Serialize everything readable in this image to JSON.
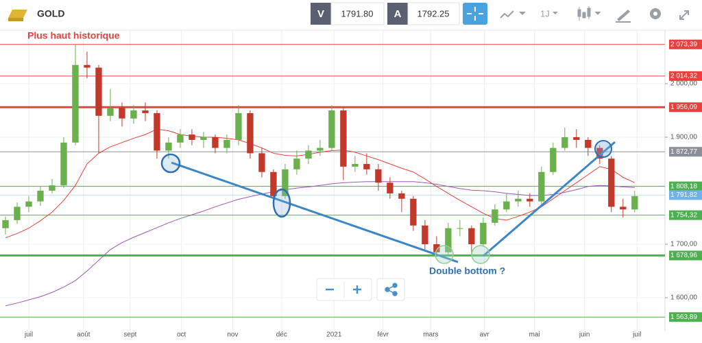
{
  "header": {
    "symbol": "GOLD",
    "bid_label": "V",
    "bid": "1791.80",
    "ask_label": "A",
    "ask": "1792.25",
    "timeframe": "1J"
  },
  "chart_data": {
    "type": "candlestick",
    "up_color": "#6ab04c",
    "down_color": "#c0392b",
    "open": [
      1730,
      1745,
      1770,
      1780,
      1800,
      1810,
      1890,
      2035,
      2030,
      1940,
      1955,
      1935,
      1950,
      1945,
      1875,
      1890,
      1905,
      1895,
      1900,
      1880,
      1895,
      1945,
      1870,
      1835,
      1790,
      1840,
      1860,
      1875,
      1880,
      1950,
      1845,
      1850,
      1840,
      1815,
      1795,
      1785,
      1735,
      1700,
      1685,
      1730,
      1730,
      1700,
      1740,
      1765,
      1780,
      1785,
      1780,
      1835,
      1880,
      1900,
      1895,
      1880,
      1860,
      1770,
      1765
    ],
    "high": [
      1752,
      1778,
      1790,
      1808,
      1822,
      1900,
      2073,
      2060,
      2035,
      1990,
      1965,
      1960,
      1965,
      1950,
      1900,
      1915,
      1915,
      1910,
      1905,
      1905,
      1960,
      1950,
      1880,
      1840,
      1850,
      1875,
      1885,
      1895,
      1960,
      1955,
      1865,
      1870,
      1850,
      1825,
      1800,
      1790,
      1745,
      1715,
      1740,
      1745,
      1735,
      1750,
      1775,
      1795,
      1800,
      1795,
      1845,
      1890,
      1918,
      1915,
      1900,
      1885,
      1865,
      1785,
      1800
    ],
    "low": [
      1718,
      1738,
      1760,
      1772,
      1795,
      1805,
      1885,
      2010,
      1870,
      1930,
      1920,
      1925,
      1930,
      1860,
      1860,
      1880,
      1885,
      1880,
      1870,
      1870,
      1885,
      1860,
      1825,
      1770,
      1785,
      1830,
      1850,
      1865,
      1875,
      1820,
      1835,
      1830,
      1800,
      1785,
      1760,
      1725,
      1690,
      1677,
      1680,
      1715,
      1680,
      1695,
      1735,
      1760,
      1770,
      1770,
      1775,
      1830,
      1875,
      1880,
      1865,
      1850,
      1760,
      1750,
      1760
    ],
    "close": [
      1745,
      1770,
      1780,
      1800,
      1810,
      1890,
      2035,
      2030,
      1940,
      1955,
      1935,
      1950,
      1945,
      1875,
      1890,
      1905,
      1895,
      1900,
      1880,
      1895,
      1945,
      1870,
      1835,
      1790,
      1840,
      1860,
      1875,
      1880,
      1950,
      1845,
      1850,
      1840,
      1815,
      1795,
      1785,
      1735,
      1700,
      1685,
      1730,
      1730,
      1700,
      1740,
      1765,
      1780,
      1785,
      1780,
      1835,
      1880,
      1900,
      1895,
      1880,
      1860,
      1770,
      1765,
      1790
    ],
    "series": [
      {
        "color": "#e8413d",
        "values": [
          1712,
          1720,
          1730,
          1744,
          1760,
          1782,
          1810,
          1850,
          1870,
          1882,
          1890,
          1898,
          1905,
          1915,
          1912,
          1905,
          1902,
          1900,
          1900,
          1898,
          1895,
          1888,
          1880,
          1870,
          1866,
          1865,
          1868,
          1872,
          1875,
          1876,
          1872,
          1865,
          1858,
          1850,
          1842,
          1835,
          1822,
          1808,
          1795,
          1782,
          1770,
          1758,
          1748,
          1745,
          1752,
          1760,
          1770,
          1785,
          1800,
          1815,
          1830,
          1845,
          1840,
          1825,
          1815
        ]
      },
      {
        "color": "#9b59b6",
        "values": [
          1585,
          1590,
          1596,
          1602,
          1610,
          1620,
          1632,
          1650,
          1670,
          1690,
          1703,
          1713,
          1722,
          1731,
          1740,
          1748,
          1755,
          1762,
          1770,
          1777,
          1784,
          1789,
          1794,
          1798,
          1802,
          1805,
          1807,
          1810,
          1813,
          1815,
          1816,
          1817,
          1817,
          1817,
          1817,
          1817,
          1815,
          1812,
          1808,
          1804,
          1801,
          1800,
          1798,
          1795,
          1793,
          1791,
          1791,
          1793,
          1797,
          1802,
          1808,
          1810,
          1809,
          1807,
          1806
        ]
      }
    ],
    "xlim": [
      -0.47,
      56.6
    ],
    "xticks": [
      {
        "value": 2.0,
        "label": "juil"
      },
      {
        "value": 6.7,
        "label": "août"
      },
      {
        "value": 10.7,
        "label": "sept"
      },
      {
        "value": 15.1,
        "label": "oct"
      },
      {
        "value": 19.5,
        "label": "nov"
      },
      {
        "value": 23.7,
        "label": "déc"
      },
      {
        "value": 28.2,
        "label": "2021"
      },
      {
        "value": 32.4,
        "label": "févr"
      },
      {
        "value": 36.5,
        "label": "mars"
      },
      {
        "value": 41.1,
        "label": "avr"
      },
      {
        "value": 45.4,
        "label": "mai"
      },
      {
        "value": 49.7,
        "label": "juin"
      },
      {
        "value": 54.2,
        "label": "juil"
      }
    ],
    "ylim": [
      1538.5,
      2100
    ],
    "yticks": [
      {
        "value": 1600,
        "label": "1 600,00"
      },
      {
        "value": 1700,
        "label": "1 700,00"
      },
      {
        "value": 1900,
        "label": "1 900,00"
      },
      {
        "value": 2000,
        "label": "2 000,00"
      }
    ],
    "levels": [
      {
        "value": 2073.39,
        "label": "2 073,39",
        "color": "#e8413d"
      },
      {
        "value": 2014.32,
        "label": "2 014,32",
        "color": "#e8413d"
      },
      {
        "value": 1956.09,
        "label": "1 956,09",
        "color": "#e8413d"
      },
      {
        "value": 1872.77,
        "label": "1 872,77",
        "color": "#8a8f98"
      },
      {
        "value": 1808.18,
        "label": "1 808,18",
        "color": "#4caf50"
      },
      {
        "value": 1791.82,
        "label": "1 791,82",
        "color": "#6fb1e8"
      },
      {
        "value": 1754.32,
        "label": "1 754,32",
        "color": "#4caf50"
      },
      {
        "value": 1678.96,
        "label": "1 678,96",
        "color": "#4caf50"
      },
      {
        "value": 1563.89,
        "label": "1 563,89",
        "color": "#4caf50"
      }
    ],
    "annotations": [
      "Plus haut historique",
      "Double bottom ?"
    ]
  }
}
